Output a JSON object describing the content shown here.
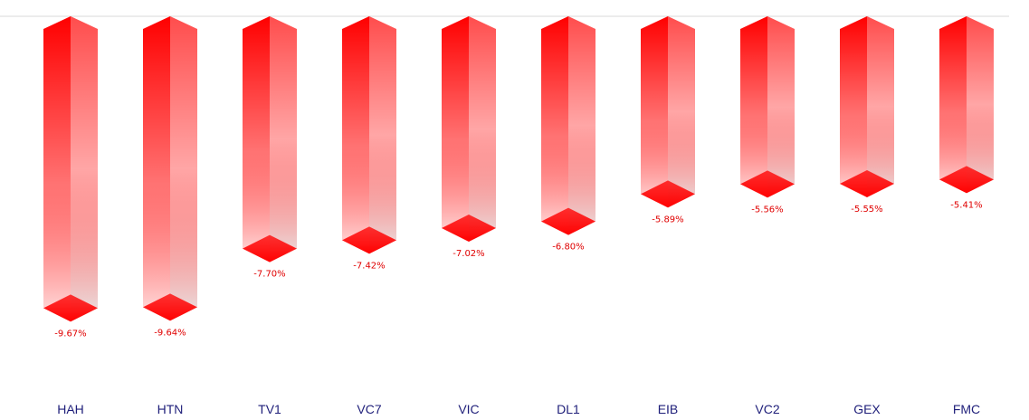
{
  "chart_data": {
    "type": "bar",
    "categories": [
      "HAH",
      "HTN",
      "TV1",
      "VC7",
      "VIC",
      "DL1",
      "EIB",
      "VC2",
      "GEX",
      "FMC"
    ],
    "values": [
      -9.67,
      -9.64,
      -7.7,
      -7.42,
      -7.02,
      -6.8,
      -5.89,
      -5.56,
      -5.55,
      -5.41
    ],
    "value_labels": [
      "-9.67%",
      "-9.64%",
      "-7.70%",
      "-7.42%",
      "-7.02%",
      "-6.80%",
      "-5.89%",
      "-5.56%",
      "-5.55%",
      "-5.41%"
    ],
    "color": "#ff0000",
    "ylim": [
      -12,
      0
    ]
  }
}
